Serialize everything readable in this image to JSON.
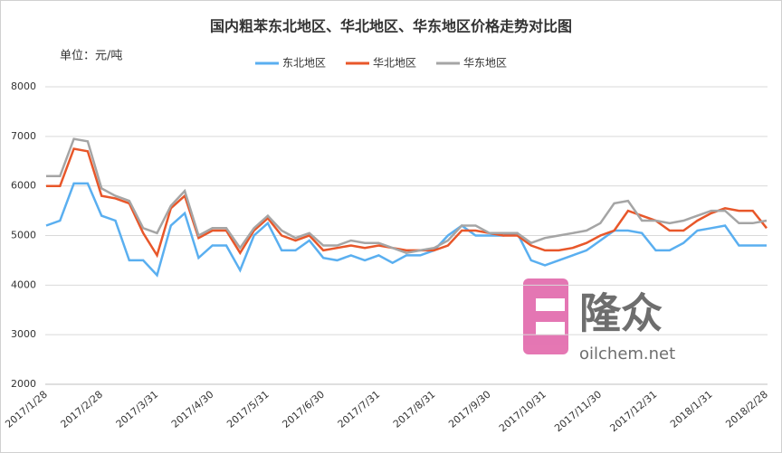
{
  "chart_data": {
    "type": "line",
    "title": "国内粗苯东北地区、华北地区、华东地区价格走势对比图",
    "unit_label": "单位：元/吨",
    "watermark": {
      "brand": "隆众",
      "site": "oilchem.net"
    },
    "categories": [
      "2017/1/28",
      null,
      null,
      null,
      "2017/2/28",
      null,
      null,
      null,
      "2017/3/31",
      null,
      null,
      null,
      "2017/4/30",
      null,
      null,
      null,
      "2017/5/31",
      null,
      null,
      null,
      "2017/6/30",
      null,
      null,
      null,
      "2017/7/31",
      null,
      null,
      null,
      "2017/8/31",
      null,
      null,
      null,
      "2017/9/30",
      null,
      null,
      null,
      "2017/10/31",
      null,
      null,
      null,
      "2017/11/30",
      null,
      null,
      null,
      "2017/12/31",
      null,
      null,
      null,
      "2018/1/31",
      null,
      null,
      null,
      "2018/2/28"
    ],
    "series": [
      {
        "name": "东北地区",
        "color": "#5aaff0",
        "values": [
          5200,
          5300,
          6050,
          6050,
          5400,
          5300,
          4500,
          4500,
          4200,
          5200,
          5450,
          4550,
          4800,
          4800,
          4300,
          5000,
          5250,
          4700,
          4700,
          4900,
          4550,
          4500,
          4600,
          4500,
          4600,
          4450,
          4600,
          4600,
          4700,
          5000,
          5200,
          5000,
          5000,
          5000,
          5050,
          4500,
          4400,
          4500,
          4600,
          4700,
          4900,
          5100,
          5100,
          5050,
          4700,
          4700,
          4850,
          5100,
          5150,
          5200,
          4800,
          4800,
          4800
        ]
      },
      {
        "name": "华北地区",
        "color": "#e8572a",
        "values": [
          6000,
          6000,
          6750,
          6700,
          5800,
          5750,
          5650,
          5050,
          4600,
          5550,
          5800,
          4950,
          5100,
          5100,
          4650,
          5100,
          5350,
          5000,
          4900,
          5000,
          4700,
          4750,
          4800,
          4750,
          4800,
          4750,
          4700,
          4700,
          4700,
          4800,
          5100,
          5100,
          5050,
          5000,
          5000,
          4800,
          4700,
          4700,
          4750,
          4850,
          5000,
          5100,
          5500,
          5400,
          5300,
          5100,
          5100,
          5300,
          5450,
          5550,
          5500,
          5500,
          5150
        ]
      },
      {
        "name": "华东地区",
        "color": "#a5a5a5",
        "values": [
          6200,
          6200,
          6950,
          6900,
          5950,
          5800,
          5700,
          5150,
          5050,
          5600,
          5900,
          5000,
          5150,
          5150,
          4750,
          5150,
          5400,
          5100,
          4950,
          5050,
          4800,
          4800,
          4900,
          4850,
          4850,
          4750,
          4650,
          4700,
          4750,
          4900,
          5200,
          5200,
          5050,
          5050,
          5050,
          4850,
          4950,
          5000,
          5050,
          5100,
          5250,
          5650,
          5700,
          5300,
          5300,
          5250,
          5300,
          5400,
          5500,
          5500,
          5250,
          5250,
          5300
        ]
      }
    ],
    "ylim": [
      2000,
      8000
    ],
    "yticks": [
      2000,
      3000,
      4000,
      5000,
      6000,
      7000,
      8000
    ],
    "grid": true
  }
}
